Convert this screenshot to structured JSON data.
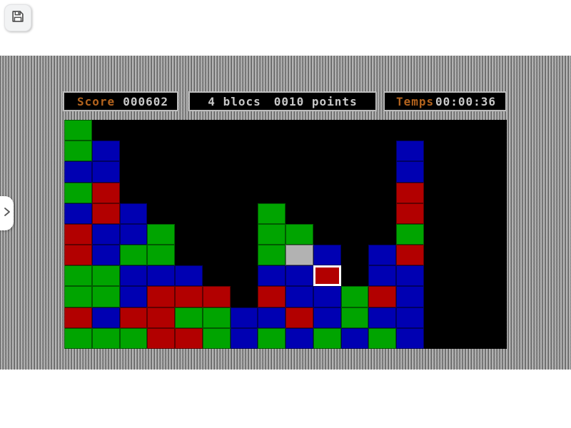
{
  "header": {
    "save_button": {
      "icon": "floppy-disk"
    }
  },
  "side_tab": {
    "icon": "chevron-right"
  },
  "hud": {
    "score": {
      "label": "Score",
      "value": "000602"
    },
    "selection": {
      "blocks": "4 blocs",
      "points": "0010 points"
    },
    "time": {
      "label": "Temps",
      "value": "00:00:36"
    }
  },
  "board": {
    "rows": 11,
    "cols": 16,
    "cell_colors": {
      "G": "#00a400",
      "B": "#0000b2",
      "R": "#b20000",
      "S": "#b2b2b2"
    },
    "selected_cell": {
      "row": 8,
      "col": 10
    },
    "grid": [
      "G...............",
      "GB..........B...",
      "BB..........B...",
      "GR..........R...",
      "BRB....G....R...",
      "RBBG...GG...G...",
      "RBGG...GSB.BR...",
      "GGBBB..BBR.BB...",
      "GGBRRR.RBBGRB...",
      "RBRRGGBBRBGBB...",
      "GGGRRGBGBGBGB..."
    ]
  },
  "colors": {
    "label_orange": "#b4641e",
    "value_gray": "#c8c8c8",
    "panel_border": "#bdbdbd",
    "board_bg": "#000000"
  }
}
